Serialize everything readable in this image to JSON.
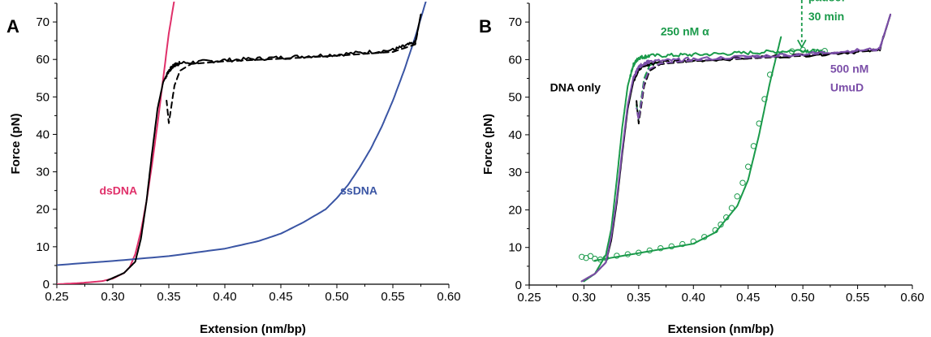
{
  "chart_data": [
    {
      "type": "line",
      "panel_label": "A",
      "xlabel": "Extension (nm/bp)",
      "ylabel": "Force (pN)",
      "xlim": [
        0.25,
        0.6
      ],
      "ylim": [
        0,
        75
      ],
      "xticks": [
        "0.25",
        "0.30",
        "0.35",
        "0.40",
        "0.45",
        "0.50",
        "0.55",
        "0.60"
      ],
      "yticks": [
        "0",
        "10",
        "20",
        "30",
        "40",
        "50",
        "60",
        "70"
      ],
      "grid": false,
      "annotations": [
        {
          "text": "dsDNA",
          "x": 0.288,
          "y": 24,
          "color": "#e0306a"
        },
        {
          "text": "ssDNA",
          "x": 0.503,
          "y": 24,
          "color": "#3a55a4"
        }
      ],
      "series": [
        {
          "color": "#e0306a",
          "style": "solid",
          "width": 2,
          "x": [
            0.25,
            0.27,
            0.29,
            0.3,
            0.31,
            0.315,
            0.32,
            0.325,
            0.33,
            0.335,
            0.34,
            0.345,
            0.35,
            0.355
          ],
          "y": [
            0,
            0.3,
            0.8,
            1.5,
            3,
            4.5,
            8,
            14,
            22,
            32,
            43,
            55,
            67,
            76
          ]
        },
        {
          "color": "#3a55a4",
          "style": "solid",
          "width": 2,
          "x": [
            0.25,
            0.3,
            0.35,
            0.4,
            0.43,
            0.45,
            0.47,
            0.49,
            0.5,
            0.51,
            0.52,
            0.53,
            0.54,
            0.55,
            0.56,
            0.57,
            0.58
          ],
          "y": [
            5.1,
            6.2,
            7.5,
            9.5,
            11.5,
            13.5,
            16.5,
            20,
            23,
            26.5,
            31,
            36,
            42,
            49,
            57,
            66,
            76
          ]
        },
        {
          "color": "#000000",
          "style": "solid",
          "width": 2,
          "jitter": true,
          "x": [
            0.295,
            0.31,
            0.32,
            0.325,
            0.33,
            0.335,
            0.34,
            0.345,
            0.35,
            0.355,
            0.36,
            0.4,
            0.45,
            0.5,
            0.55,
            0.57,
            0.575
          ],
          "y": [
            1,
            3,
            6,
            12,
            22,
            35,
            47,
            54,
            57,
            58.5,
            59,
            59.8,
            60.5,
            61.3,
            62.5,
            64.5,
            72
          ]
        },
        {
          "color": "#000000",
          "style": "dashed",
          "width": 2,
          "x": [
            0.575,
            0.57,
            0.55,
            0.5,
            0.45,
            0.4,
            0.37,
            0.36,
            0.355,
            0.352,
            0.35,
            0.348
          ],
          "y": [
            72,
            64,
            62,
            61,
            60.2,
            59.5,
            58.8,
            57,
            53,
            47,
            43,
            49
          ]
        }
      ]
    },
    {
      "type": "line",
      "panel_label": "B",
      "xlabel": "Extension (nm/bp)",
      "ylabel": "Force (pN)",
      "xlim": [
        0.25,
        0.6
      ],
      "ylim": [
        0,
        75
      ],
      "xticks": [
        "0.25",
        "0.30",
        "0.35",
        "0.40",
        "0.45",
        "0.50",
        "0.55",
        "0.60"
      ],
      "yticks": [
        "0",
        "10",
        "20",
        "30",
        "40",
        "50",
        "60",
        "70"
      ],
      "grid": false,
      "annotations": [
        {
          "text": "250 nM α",
          "x": 0.37,
          "y": 66.5,
          "color": "#1a9a4a"
        },
        {
          "text": "pause:",
          "x": 0.505,
          "y": 75.5,
          "color": "#1a9a4a"
        },
        {
          "text": "30 min",
          "x": 0.505,
          "y": 70.5,
          "color": "#1a9a4a"
        },
        {
          "text": "500 nM",
          "x": 0.525,
          "y": 56.5,
          "color": "#7b4ea8"
        },
        {
          "text": "UmuD",
          "x": 0.525,
          "y": 51.5,
          "color": "#7b4ea8"
        },
        {
          "text": "DNA only",
          "x": 0.269,
          "y": 51.5,
          "color": "#000000"
        }
      ],
      "arrow": {
        "x": 0.499,
        "y_from": 76,
        "y_to": 63.3,
        "color": "#1a9a4a"
      },
      "series": [
        {
          "color": "#1a9a4a",
          "style": "solid",
          "width": 2,
          "jitter": true,
          "x": [
            0.3,
            0.31,
            0.32,
            0.325,
            0.33,
            0.335,
            0.34,
            0.345,
            0.35,
            0.36,
            0.4,
            0.45,
            0.5,
            0.52
          ],
          "y": [
            1,
            3,
            8,
            15,
            28,
            42,
            53,
            58.5,
            60.5,
            61,
            61.3,
            61.8,
            62.5,
            62
          ]
        },
        {
          "color": "#1a9a4a",
          "style": "dashed",
          "width": 2,
          "x": [
            0.37,
            0.36,
            0.355,
            0.352,
            0.35,
            0.348
          ],
          "y": [
            59.5,
            58.5,
            55,
            49,
            44,
            48
          ]
        },
        {
          "color": "#1a9a4a",
          "style": "solid",
          "width": 2,
          "x": [
            0.31,
            0.35,
            0.4,
            0.42,
            0.44,
            0.45,
            0.46,
            0.465,
            0.47,
            0.475,
            0.48
          ],
          "y": [
            6.5,
            8.5,
            11,
            14,
            21,
            28,
            40,
            47,
            54,
            60,
            66
          ]
        },
        {
          "color": "#1a9a4a",
          "style": "markers",
          "width": 1,
          "x": [
            0.298,
            0.302,
            0.306,
            0.31,
            0.315,
            0.32,
            0.33,
            0.34,
            0.35,
            0.36,
            0.37,
            0.38,
            0.39,
            0.4,
            0.41,
            0.42,
            0.425,
            0.43,
            0.435,
            0.44,
            0.445,
            0.45,
            0.455,
            0.46,
            0.465,
            0.47,
            0.48,
            0.49,
            0.5,
            0.51,
            0.52
          ],
          "y": [
            7.5,
            7.2,
            7.7,
            7,
            6.8,
            7.2,
            7.8,
            8.2,
            8.6,
            9.2,
            9.8,
            10.3,
            10.9,
            11.6,
            12.8,
            14.6,
            16.1,
            18,
            20.5,
            23.6,
            27.2,
            31.5,
            37,
            43,
            49.5,
            56,
            61.2,
            62.2,
            62.6,
            62.1,
            62.3
          ]
        },
        {
          "color": "#000000",
          "style": "solid",
          "width": 2,
          "jitter": true,
          "x": [
            0.298,
            0.31,
            0.32,
            0.325,
            0.33,
            0.335,
            0.34,
            0.345,
            0.35,
            0.355,
            0.36,
            0.4,
            0.5,
            0.57,
            0.58
          ],
          "y": [
            1,
            3,
            6,
            12,
            22,
            35,
            47,
            54,
            57.5,
            58.5,
            59,
            59.8,
            61.2,
            62.5,
            72
          ]
        },
        {
          "color": "#000000",
          "style": "dashed",
          "width": 2,
          "x": [
            0.58,
            0.57,
            0.5,
            0.4,
            0.37,
            0.36,
            0.355,
            0.352,
            0.35,
            0.348
          ],
          "y": [
            72,
            62.5,
            61,
            59.6,
            58.8,
            57,
            53,
            47,
            43,
            49
          ]
        },
        {
          "color": "#7b4ea8",
          "style": "solid",
          "width": 2,
          "jitter": true,
          "x": [
            0.298,
            0.31,
            0.32,
            0.325,
            0.33,
            0.335,
            0.34,
            0.345,
            0.35,
            0.355,
            0.36,
            0.4,
            0.5,
            0.57,
            0.58
          ],
          "y": [
            1,
            3,
            6,
            13,
            23,
            36,
            48,
            55,
            58,
            59,
            59.5,
            60.1,
            61.5,
            62.8,
            72
          ]
        },
        {
          "color": "#7b4ea8",
          "style": "dashed",
          "width": 2,
          "x": [
            0.58,
            0.57,
            0.5,
            0.4,
            0.37,
            0.36,
            0.355,
            0.352,
            0.35,
            0.348
          ],
          "y": [
            72,
            62.8,
            61.2,
            59.8,
            59,
            57.5,
            54,
            48,
            44,
            47
          ]
        }
      ]
    }
  ]
}
